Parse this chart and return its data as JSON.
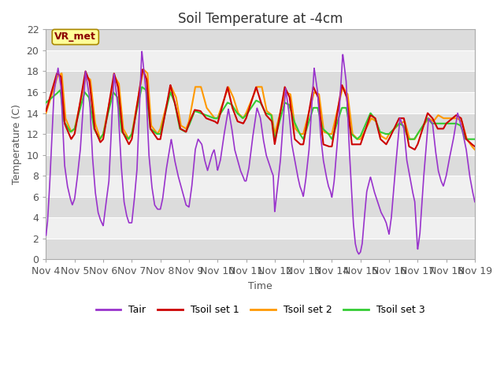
{
  "title": "Soil Temperature at -4cm",
  "xlabel": "Time",
  "ylabel": "Temperature (C)",
  "ylim": [
    0,
    22
  ],
  "yticks": [
    0,
    2,
    4,
    6,
    8,
    10,
    12,
    14,
    16,
    18,
    20,
    22
  ],
  "x_tick_labels": [
    "Nov 4",
    "Nov 5",
    "Nov 6",
    "Nov 7",
    "Nov 8",
    "Nov 9",
    "Nov 10",
    "Nov 11",
    "Nov 12",
    "Nov 13",
    "Nov 14",
    "Nov 15",
    "Nov 16",
    "Nov 17",
    "Nov 18",
    "Nov 19"
  ],
  "legend_labels": [
    "Tair",
    "Tsoil set 1",
    "Tsoil set 2",
    "Tsoil set 3"
  ],
  "tair_color": "#9933cc",
  "ts1_color": "#cc0000",
  "ts2_color": "#ff9900",
  "ts3_color": "#33cc33",
  "annotation_text": "VR_met",
  "annotation_bg": "#ffff99",
  "annotation_border": "#aa8800",
  "plot_bg_dark": "#dcdcdc",
  "plot_bg_light": "#f0f0f0",
  "title_fontsize": 12,
  "axis_fontsize": 9,
  "tick_fontsize": 9,
  "tick_color": "#555555"
}
